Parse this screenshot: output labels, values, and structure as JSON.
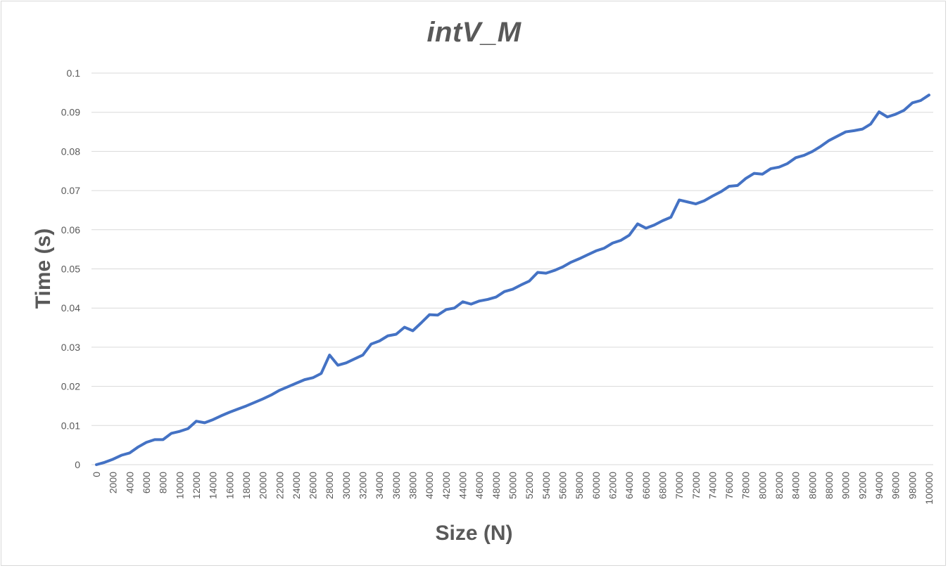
{
  "chart_data": {
    "type": "line",
    "title": "intV_M",
    "xlabel": "Size (N)",
    "ylabel": "Time (s)",
    "ylim": [
      0,
      0.1
    ],
    "yticks": [
      "0",
      "0.01",
      "0.02",
      "0.03",
      "0.04",
      "0.05",
      "0.06",
      "0.07",
      "0.08",
      "0.09",
      "0.1"
    ],
    "categories": [
      "0",
      "1000",
      "2000",
      "3000",
      "4000",
      "5000",
      "6000",
      "7000",
      "8000",
      "9000",
      "10000",
      "11000",
      "12000",
      "13000",
      "14000",
      "15000",
      "16000",
      "17000",
      "18000",
      "19000",
      "20000",
      "21000",
      "22000",
      "23000",
      "24000",
      "25000",
      "26000",
      "27000",
      "28000",
      "29000",
      "30000",
      "31000",
      "32000",
      "33000",
      "34000",
      "35000",
      "36000",
      "37000",
      "38000",
      "39000",
      "40000",
      "41000",
      "42000",
      "43000",
      "44000",
      "45000",
      "46000",
      "47000",
      "48000",
      "49000",
      "50000",
      "51000",
      "52000",
      "53000",
      "54000",
      "55000",
      "56000",
      "57000",
      "58000",
      "59000",
      "60000",
      "61000",
      "62000",
      "63000",
      "64000",
      "65000",
      "66000",
      "67000",
      "68000",
      "69000",
      "70000",
      "71000",
      "72000",
      "73000",
      "74000",
      "75000",
      "76000",
      "77000",
      "78000",
      "79000",
      "80000",
      "81000",
      "82000",
      "83000",
      "84000",
      "85000",
      "86000",
      "87000",
      "88000",
      "89000",
      "90000",
      "91000",
      "92000",
      "93000",
      "94000",
      "95000",
      "96000",
      "97000",
      "98000",
      "99000",
      "100000"
    ],
    "xtick_labels": [
      "0",
      "2000",
      "4000",
      "6000",
      "8000",
      "10000",
      "12000",
      "14000",
      "16000",
      "18000",
      "20000",
      "22000",
      "24000",
      "26000",
      "28000",
      "30000",
      "32000",
      "34000",
      "36000",
      "38000",
      "40000",
      "42000",
      "44000",
      "46000",
      "48000",
      "50000",
      "52000",
      "54000",
      "56000",
      "58000",
      "60000",
      "62000",
      "64000",
      "66000",
      "68000",
      "70000",
      "72000",
      "74000",
      "76000",
      "78000",
      "80000",
      "82000",
      "84000",
      "86000",
      "88000",
      "90000",
      "92000",
      "94000",
      "96000",
      "98000",
      "100000"
    ],
    "grid": true,
    "legend": "none",
    "series": [
      {
        "color": "#4472c4",
        "values": [
          0,
          0.0006,
          0.0014,
          0.0024,
          0.003,
          0.0045,
          0.0057,
          0.0064,
          0.0064,
          0.008,
          0.0085,
          0.0092,
          0.0111,
          0.0107,
          0.0115,
          0.0125,
          0.0134,
          0.0142,
          0.015,
          0.0159,
          0.0168,
          0.0178,
          0.019,
          0.0199,
          0.0208,
          0.0217,
          0.0222,
          0.0233,
          0.028,
          0.0254,
          0.026,
          0.027,
          0.028,
          0.0308,
          0.0316,
          0.0329,
          0.0333,
          0.0351,
          0.0342,
          0.0362,
          0.0383,
          0.0382,
          0.0396,
          0.04,
          0.0416,
          0.041,
          0.0418,
          0.0422,
          0.0428,
          0.0442,
          0.0448,
          0.0459,
          0.0469,
          0.0491,
          0.0489,
          0.0496,
          0.0505,
          0.0517,
          0.0526,
          0.0536,
          0.0546,
          0.0553,
          0.0566,
          0.0573,
          0.0586,
          0.0615,
          0.0604,
          0.0612,
          0.0623,
          0.0632,
          0.0676,
          0.0671,
          0.0666,
          0.0674,
          0.0686,
          0.0697,
          0.0711,
          0.0713,
          0.0731,
          0.0744,
          0.0742,
          0.0756,
          0.076,
          0.0769,
          0.0784,
          0.079,
          0.08,
          0.0813,
          0.0828,
          0.0839,
          0.085,
          0.0853,
          0.0857,
          0.087,
          0.0901,
          0.0888,
          0.0895,
          0.0905,
          0.0924,
          0.093,
          0.0944
        ]
      }
    ]
  }
}
